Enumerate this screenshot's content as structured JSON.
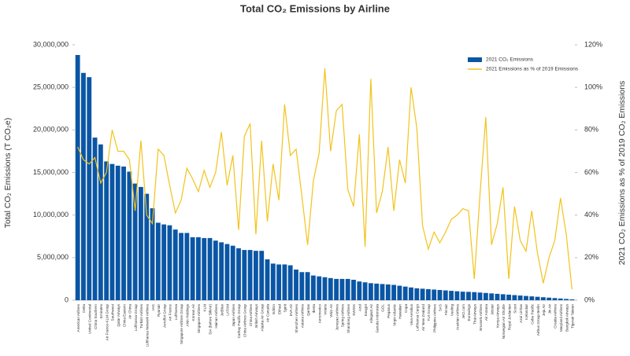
{
  "chart_data": {
    "type": "bar_line",
    "title": "Total CO₂ Emissions by Airline",
    "y_label": "Total CO₂ Emissions (T CO₂e)",
    "y2_label": "2021 CO₂ Emissions as % of 2019 CO₂ Emissions",
    "categories": [
      "American Airlines",
      "Delta",
      "United Continental",
      "China Southern",
      "Emirates",
      "Air France-KLM Group",
      "Southwest",
      "Qatar Airways",
      "China Eastern",
      "Air China",
      "Lufthansa Group",
      "Turkish Airlines",
      "Lufthansa Network Airlines",
      "IAG",
      "Ryanair",
      "Aeroflot Group",
      "Air France",
      "Lufthansa",
      "Singapore Airlines Group",
      "ANA Holdings",
      "Korean Air",
      "Singapore Airlines",
      "KLM",
      "SIA (before SilkAir)",
      "Hainan Airlines",
      "JetBlue",
      "LATAM",
      "Japan Airlines",
      "Cathay Pacific Group",
      "China Airlines Group",
      "China Airlines",
      "British Airways",
      "Alaska Air Group",
      "Air Canada",
      "IndiGo",
      "Etihad",
      "Spirit",
      "EVA Air",
      "Shenzhen Airlines",
      "Asiana Airlines",
      "Qantas",
      "Iberia",
      "Aeromexico",
      "Volaris",
      "Wizz Air",
      "Juneyao Airlines",
      "Spring Airlines",
      "Shandong Airlines",
      "SWISS",
      "Azul",
      "Easyjet",
      "Allegiant Air",
      "Garuda Indonesia",
      "GOL",
      "Pegasus",
      "Virgin Atlantic",
      "Hawaiian",
      "Copa",
      "Viva Aerobus",
      "Lufthansa Cargo",
      "Air New Zealand",
      "TUI Group",
      "Philippine Airlines",
      "SAS",
      "Finnair",
      "Vueling",
      "Austrian Airlines",
      "Jet2.com",
      "Eurowings",
      "Thai Airways",
      "Brussels Airlines",
      "Air Astana",
      "Jetstar",
      "Kenya Airways",
      "Norwegian Air Shuttle",
      "Royal Jordanian",
      "Scoot",
      "Azul Linhas",
      "Icelandair",
      "Cebu Pacific",
      "Airbus Group Berlin",
      "Jeju Air",
      "Jin Air",
      "Croatia Airlines",
      "Maryland Airlines",
      "Bangkok Airways",
      "Tigerair Taiwan"
    ],
    "series": [
      {
        "name": "2021 CO₂ Emissions",
        "color": "#0a56a5",
        "type": "bar",
        "values": [
          28800000,
          26700000,
          26200000,
          19100000,
          18300000,
          16300000,
          16000000,
          15800000,
          15700000,
          15100000,
          13700000,
          13300000,
          12500000,
          10800000,
          9100000,
          8900000,
          8800000,
          8300000,
          7900000,
          7900000,
          7400000,
          7400000,
          7300000,
          7300000,
          7000000,
          6800000,
          6600000,
          6400000,
          6100000,
          5900000,
          5900000,
          5800000,
          5800000,
          4800000,
          4300000,
          4200000,
          4200000,
          4100000,
          3600000,
          3300000,
          3300000,
          2900000,
          2800000,
          2700000,
          2600000,
          2500000,
          2500000,
          2500000,
          2400000,
          2200000,
          2100000,
          2000000,
          1950000,
          1900000,
          1850000,
          1800000,
          1700000,
          1600000,
          1500000,
          1400000,
          1350000,
          1300000,
          1250000,
          1200000,
          1150000,
          1100000,
          1050000,
          1000000,
          980000,
          950000,
          900000,
          850000,
          800000,
          750000,
          700000,
          650000,
          600000,
          550000,
          500000,
          450000,
          400000,
          350000,
          300000,
          250000,
          200000,
          150000,
          100000
        ]
      },
      {
        "name": "2021 Emissions as % of 2019 Emissions",
        "color": "#f2c31b",
        "type": "line",
        "axis": "y2",
        "values": [
          72,
          66,
          64,
          67,
          55,
          60,
          80,
          70,
          70,
          66,
          42,
          75,
          40,
          36,
          71,
          68,
          54,
          41,
          47,
          62,
          57,
          51,
          61,
          53,
          60,
          79,
          54,
          68,
          33,
          77,
          83,
          31,
          75,
          37,
          64,
          47,
          92,
          68,
          71,
          49,
          26,
          56,
          69,
          109,
          70,
          89,
          92,
          52,
          44,
          78,
          25,
          104,
          41,
          51,
          72,
          42,
          66,
          55,
          100,
          81,
          35,
          24,
          32,
          27,
          32,
          38,
          40,
          43,
          42,
          10,
          50,
          86,
          26,
          36,
          53,
          10,
          44,
          28,
          23,
          42,
          22,
          8,
          20,
          28,
          48,
          31,
          5
        ]
      }
    ],
    "ylim": [
      0,
      30000000
    ],
    "yticks": [
      {
        "value": 0,
        "label": "0"
      },
      {
        "value": 5000000,
        "label": "5,000,000"
      },
      {
        "value": 10000000,
        "label": "10,000,000"
      },
      {
        "value": 15000000,
        "label": "15,000,000"
      },
      {
        "value": 20000000,
        "label": "20,000,000"
      },
      {
        "value": 25000000,
        "label": "25,000,000"
      },
      {
        "value": 30000000,
        "label": "30,000,000"
      }
    ],
    "y2lim": [
      0,
      120
    ],
    "y2ticks": [
      {
        "value": 0,
        "label": "0%"
      },
      {
        "value": 20,
        "label": "20%"
      },
      {
        "value": 40,
        "label": "40%"
      },
      {
        "value": 60,
        "label": "60%"
      },
      {
        "value": 80,
        "label": "80%"
      },
      {
        "value": 100,
        "label": "100%"
      },
      {
        "value": 120,
        "label": "120%"
      }
    ],
    "legend": "upper right"
  }
}
